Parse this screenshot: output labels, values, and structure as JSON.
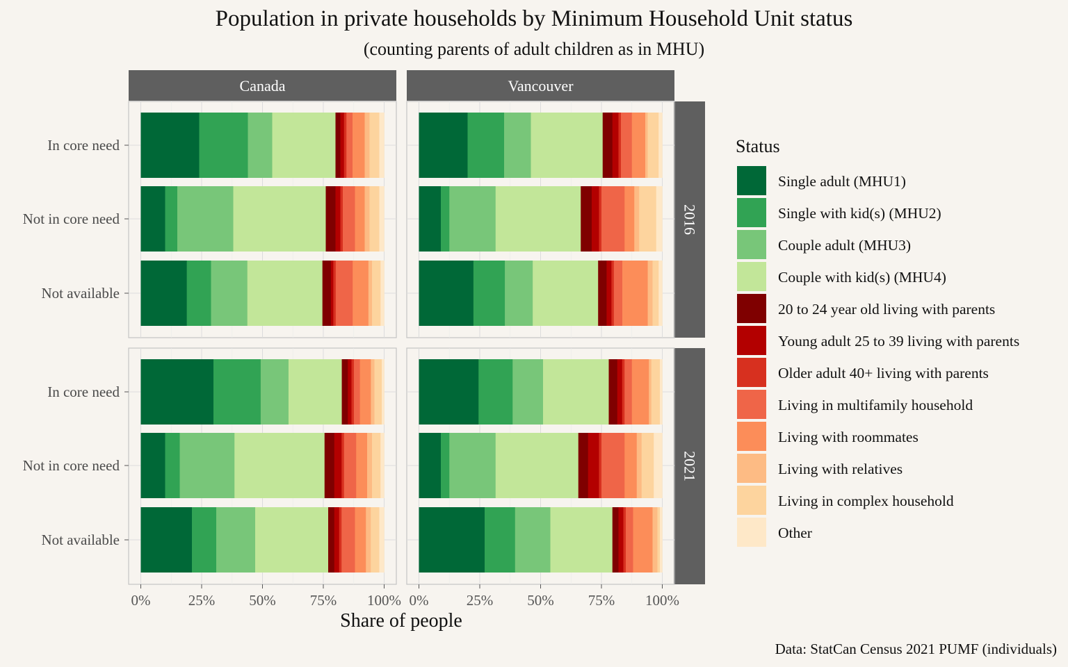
{
  "chart_data": {
    "type": "bar",
    "orientation": "horizontal",
    "stacked": true,
    "title": "Population in private households by Minimum Household Unit status",
    "subtitle": "(counting parents of adult children as in MHU)",
    "xlabel": "Share of people",
    "ylabel": "",
    "caption": "Data: StatCan Census 2021 PUMF (individuals)",
    "xlim": [
      0,
      1
    ],
    "x_ticks": [
      "0%",
      "25%",
      "50%",
      "75%",
      "100%"
    ],
    "grid": true,
    "legend": {
      "title": "Status",
      "position": "right",
      "entries": [
        {
          "name": "Single adult (MHU1)",
          "color": "#006837"
        },
        {
          "name": "Single with kid(s) (MHU2)",
          "color": "#31a354"
        },
        {
          "name": "Couple adult (MHU3)",
          "color": "#78c679"
        },
        {
          "name": "Couple with kid(s) (MHU4)",
          "color": "#c2e699"
        },
        {
          "name": "20 to 24 year old living with parents",
          "color": "#7f0000"
        },
        {
          "name": "Young adult 25 to 39 living with parents",
          "color": "#b30000"
        },
        {
          "name": "Older adult 40+ living with parents",
          "color": "#d7301f"
        },
        {
          "name": "Living in multifamily household",
          "color": "#ef6548"
        },
        {
          "name": "Living with roommates",
          "color": "#fc8d59"
        },
        {
          "name": "Living with relatives",
          "color": "#fdbb84"
        },
        {
          "name": "Living in complex household",
          "color": "#fdd49e"
        },
        {
          "name": "Other",
          "color": "#fee8c8"
        }
      ]
    },
    "facet_columns": [
      "Canada",
      "Vancouver"
    ],
    "facet_rows": [
      "2016",
      "2021"
    ],
    "categories": [
      "In core need",
      "Not in core need",
      "Not available"
    ],
    "panels": [
      {
        "column": "Canada",
        "row": "2016",
        "bars": {
          "In core need": [
            0.24,
            0.2,
            0.1,
            0.26,
            0.02,
            0.015,
            0.01,
            0.025,
            0.05,
            0.02,
            0.04,
            0.02
          ],
          "Not in core need": [
            0.1,
            0.05,
            0.23,
            0.38,
            0.04,
            0.02,
            0.01,
            0.05,
            0.04,
            0.02,
            0.04,
            0.02
          ],
          "Not available": [
            0.19,
            0.1,
            0.15,
            0.31,
            0.035,
            0.01,
            0.01,
            0.07,
            0.065,
            0.015,
            0.035,
            0.015
          ]
        }
      },
      {
        "column": "Vancouver",
        "row": "2016",
        "bars": {
          "In core need": [
            0.2,
            0.15,
            0.11,
            0.295,
            0.04,
            0.025,
            0.01,
            0.045,
            0.055,
            0.01,
            0.045,
            0.015
          ],
          "Not in core need": [
            0.09,
            0.035,
            0.19,
            0.35,
            0.045,
            0.03,
            0.01,
            0.095,
            0.04,
            0.02,
            0.07,
            0.025
          ],
          "Not available": [
            0.225,
            0.13,
            0.115,
            0.27,
            0.035,
            0.02,
            0.01,
            0.035,
            0.105,
            0.02,
            0.025,
            0.015
          ]
        }
      },
      {
        "column": "Canada",
        "row": "2021",
        "bars": {
          "In core need": [
            0.3,
            0.195,
            0.115,
            0.22,
            0.025,
            0.015,
            0.01,
            0.025,
            0.045,
            0.015,
            0.03,
            0.01
          ],
          "Not in core need": [
            0.1,
            0.06,
            0.225,
            0.37,
            0.04,
            0.03,
            0.01,
            0.05,
            0.045,
            0.02,
            0.035,
            0.015
          ],
          "Not available": [
            0.21,
            0.1,
            0.16,
            0.3,
            0.025,
            0.02,
            0.01,
            0.055,
            0.045,
            0.02,
            0.035,
            0.02
          ]
        }
      },
      {
        "column": "Vancouver",
        "row": "2021",
        "bars": {
          "In core need": [
            0.245,
            0.14,
            0.125,
            0.27,
            0.035,
            0.02,
            0.01,
            0.03,
            0.07,
            0.01,
            0.035,
            0.01
          ],
          "Not in core need": [
            0.09,
            0.035,
            0.19,
            0.34,
            0.04,
            0.045,
            0.01,
            0.095,
            0.05,
            0.02,
            0.05,
            0.035
          ],
          "Not available": [
            0.27,
            0.125,
            0.145,
            0.255,
            0.025,
            0.02,
            0.01,
            0.03,
            0.08,
            0.02,
            0.01,
            0.01
          ]
        }
      }
    ]
  }
}
